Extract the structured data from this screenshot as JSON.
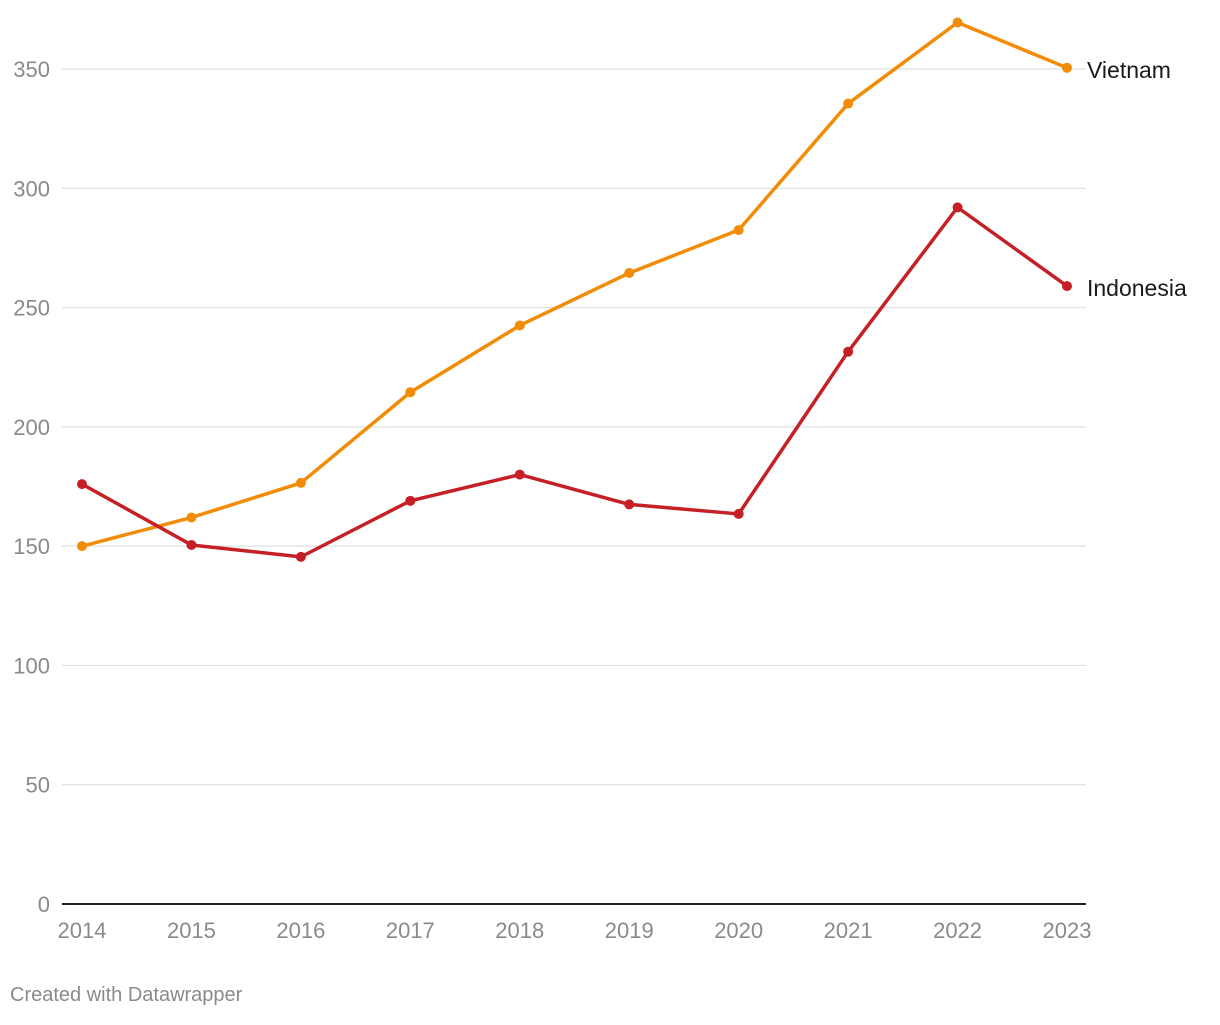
{
  "chart_data": {
    "type": "line",
    "title": "",
    "xlabel": "",
    "ylabel": "",
    "categories": [
      "2014",
      "2015",
      "2016",
      "2017",
      "2018",
      "2019",
      "2020",
      "2021",
      "2022",
      "2023"
    ],
    "ylim": [
      0,
      370
    ],
    "yticks": [
      0,
      50,
      100,
      150,
      200,
      250,
      300,
      350
    ],
    "grid": true,
    "legend": "direct labels at line ends",
    "series": [
      {
        "name": "Vietnam",
        "color": "#f28c06",
        "values": [
          150,
          162,
          176.5,
          214.5,
          242.5,
          264.5,
          282.5,
          335.5,
          369.5,
          350.5
        ]
      },
      {
        "name": "Indonesia",
        "color": "#c42026",
        "values": [
          176,
          150.5,
          145.5,
          169,
          180,
          167.5,
          163.5,
          231.5,
          292,
          259
        ]
      }
    ]
  },
  "footer": {
    "credit": "Created with Datawrapper"
  }
}
